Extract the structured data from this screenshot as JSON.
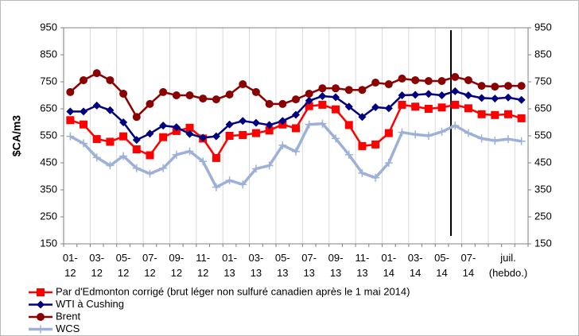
{
  "chart_data": {
    "type": "line",
    "y_axis_label": "$CA/m3",
    "categories": [
      "01- 12",
      null,
      "03- 12",
      null,
      "05- 12",
      null,
      "07- 12",
      null,
      "09- 12",
      null,
      "11- 12",
      null,
      "01- 13",
      null,
      "03- 13",
      null,
      "05- 13",
      null,
      "07- 13",
      null,
      "09- 13",
      null,
      "11- 13",
      null,
      "01- 14",
      null,
      "03- 14",
      null,
      "05- 14",
      null,
      "07- 14",
      null,
      null,
      "juil. (hebdo.)",
      null
    ],
    "ylim": [
      150,
      950
    ],
    "yticks": [
      150,
      250,
      350,
      450,
      550,
      650,
      750,
      850,
      950
    ],
    "y2lim": [
      150,
      950
    ],
    "y2ticks": [
      150,
      250,
      350,
      450,
      550,
      650,
      750,
      850,
      950
    ],
    "grid": "x",
    "legend": "bottom-left",
    "series": [
      {
        "name": "Par d'Edmonton corrigé (brut léger non sulfuré canadien après le 1 mai 2014)",
        "color": "#ff0000",
        "marker": "square",
        "values": [
          608,
          592,
          538,
          528,
          548,
          500,
          478,
          545,
          568,
          580,
          540,
          468,
          550,
          553,
          560,
          570,
          592,
          578,
          660,
          665,
          648,
          590,
          512,
          518,
          560,
          665,
          658,
          650,
          655,
          665,
          652,
          630,
          627,
          630,
          615
        ]
      },
      {
        "name": "WTI à Cushing",
        "color": "#000080",
        "marker": "diamond",
        "values": [
          640,
          640,
          662,
          645,
          600,
          535,
          558,
          588,
          582,
          557,
          543,
          548,
          592,
          605,
          598,
          590,
          605,
          628,
          680,
          697,
          693,
          658,
          620,
          656,
          652,
          700,
          702,
          705,
          700,
          715,
          700,
          690,
          688,
          692,
          683
        ]
      },
      {
        "name": "Brent",
        "color": "#8b0000",
        "marker": "circle",
        "values": [
          712,
          756,
          782,
          756,
          706,
          620,
          668,
          712,
          700,
          700,
          688,
          685,
          703,
          741,
          712,
          668,
          668,
          685,
          706,
          726,
          726,
          720,
          720,
          747,
          741,
          762,
          756,
          753,
          753,
          768,
          756,
          735,
          732,
          735,
          735
        ]
      },
      {
        "name": "WCS",
        "color": "#9db1d8",
        "marker": "plus",
        "values": [
          548,
          522,
          470,
          440,
          475,
          430,
          410,
          430,
          480,
          493,
          455,
          360,
          385,
          370,
          428,
          440,
          515,
          492,
          592,
          595,
          540,
          480,
          412,
          395,
          450,
          563,
          555,
          550,
          565,
          588,
          560,
          540,
          532,
          538,
          530
        ]
      }
    ]
  }
}
